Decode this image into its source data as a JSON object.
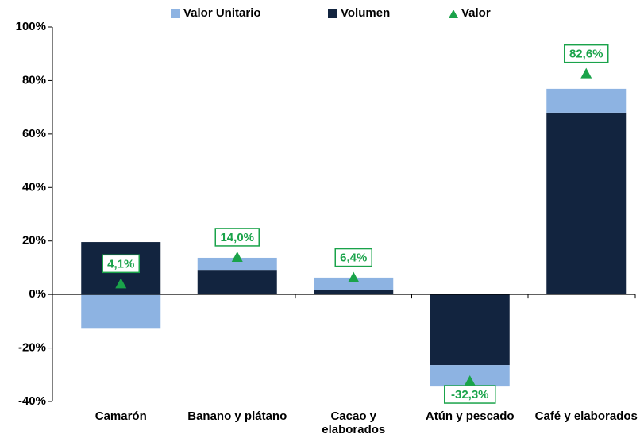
{
  "chart_data": {
    "type": "bar",
    "stacked": true,
    "categories": [
      "Camarón",
      "Banano y plátano",
      "Cacao y elaborados",
      "Atún y pescado",
      "Café y elaborados"
    ],
    "series": [
      {
        "name": "Volumen",
        "color": "#12243f",
        "values": [
          19.6,
          9.2,
          1.8,
          -26.4,
          68.0
        ]
      },
      {
        "name": "Valor Unitario",
        "color": "#8db3e2",
        "values": [
          -12.8,
          4.5,
          4.5,
          -8.0,
          8.9
        ]
      },
      {
        "name": "Valor",
        "type": "scatter",
        "marker": "triangle",
        "color": "#1aa34a",
        "values": [
          4.1,
          14.0,
          6.4,
          -32.3,
          82.6
        ],
        "value_labels": [
          "4,1%",
          "14,0%",
          "6,4%",
          "-32,3%",
          "82,6%"
        ]
      }
    ],
    "legend_order": [
      1,
      0,
      2
    ],
    "ylim": [
      -40,
      100
    ],
    "yticks": [
      {
        "value": -40,
        "label": "-40%"
      },
      {
        "value": -20,
        "label": "-20%"
      },
      {
        "value": 0,
        "label": "0%"
      },
      {
        "value": 20,
        "label": "20%"
      },
      {
        "value": 40,
        "label": "40%"
      },
      {
        "value": 60,
        "label": "60%"
      },
      {
        "value": 80,
        "label": "80%"
      },
      {
        "value": 100,
        "label": "100%"
      }
    ],
    "legend": "top",
    "grid": false
  }
}
